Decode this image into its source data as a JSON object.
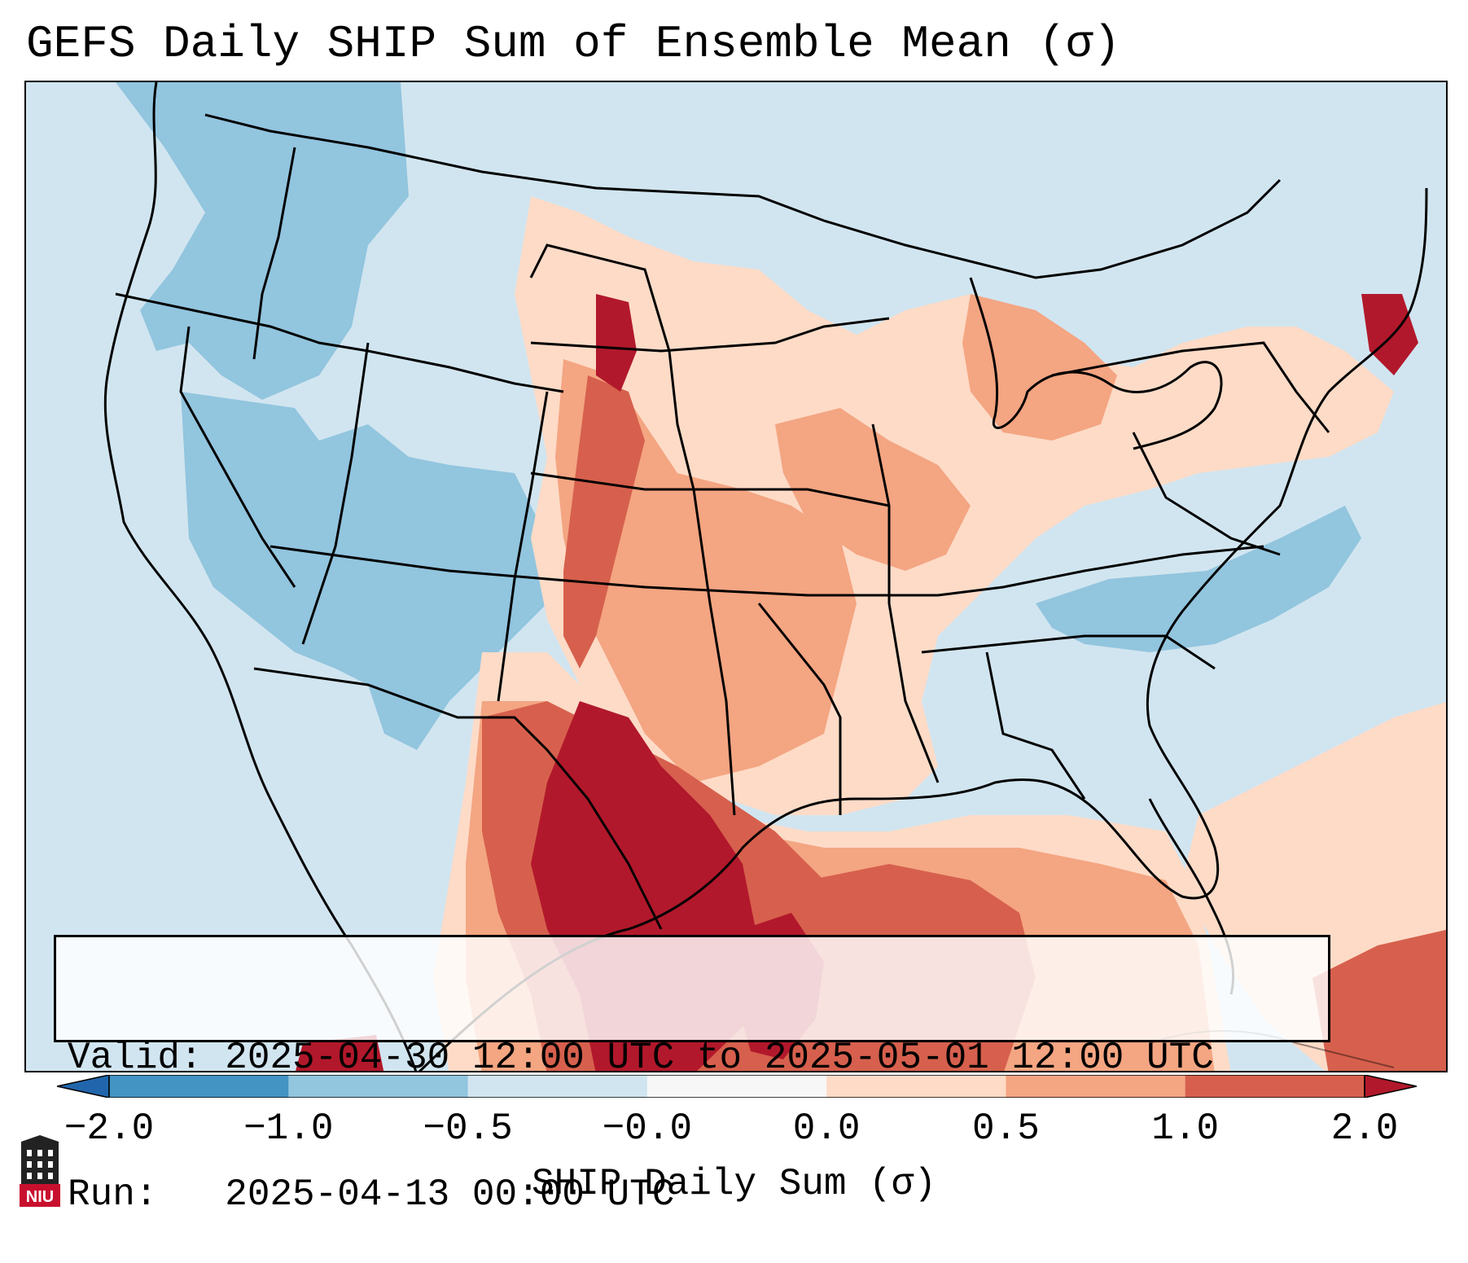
{
  "title": "GEFS Daily SHIP Sum of Ensemble Mean (σ)",
  "info": {
    "valid_line": "Valid: 2025-04-30 12:00 UTC to 2025-05-01 12:00 UTC",
    "run_line": "Run:   2025-04-13 00:00 UTC"
  },
  "colorbar": {
    "label": "SHIP Daily Sum (σ)",
    "ticks": [
      "−2.0",
      "−1.0",
      "−0.5",
      "−0.0",
      "0.0",
      "0.5",
      "1.0",
      "2.0"
    ],
    "colors": [
      "#4393c3",
      "#92c5de",
      "#d1e5f0",
      "#f7f7f7",
      "#fddbc7",
      "#f4a582",
      "#d6604d",
      "#b2182b"
    ],
    "extend": "both"
  },
  "map": {
    "background_color": "#d1e5f0",
    "projection": "Lambert conformal, CONUS",
    "features": [
      "coastlines",
      "state boundaries",
      "country boundaries"
    ]
  },
  "logo": {
    "text": "NIU",
    "color": "#c8102e"
  }
}
